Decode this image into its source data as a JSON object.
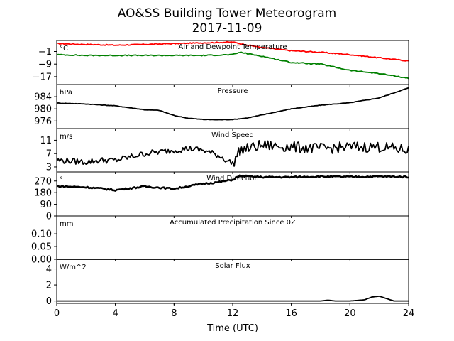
{
  "figure": {
    "title_line1": "AO&SS Building Tower Meteorogram",
    "title_line2": "2017-11-09",
    "xlabel": "Time (UTC)",
    "x_ticks": [
      0,
      4,
      8,
      12,
      16,
      20,
      24
    ],
    "xlim": [
      0,
      24
    ]
  },
  "chart_data": [
    {
      "type": "line",
      "title": "Air and Dewpoint Temperature",
      "unit": "°C",
      "ylim": [
        -22,
        6
      ],
      "y_ticks": [
        -1,
        -9,
        -17
      ],
      "y_tick_labels": [
        "−1",
        "−9",
        "−17"
      ],
      "x": [
        0,
        2,
        4,
        6,
        8,
        10,
        12,
        12.5,
        14,
        16,
        18,
        20,
        22,
        24
      ],
      "series": [
        {
          "name": "Air Temperature",
          "color": "#ff0000",
          "values": [
            4,
            3.5,
            3,
            3.5,
            4,
            4.5,
            5,
            4,
            1.5,
            -0.5,
            -1.5,
            -3,
            -5,
            -7
          ]
        },
        {
          "name": "Dewpoint Temperature",
          "color": "#008000",
          "values": [
            -3,
            -3.5,
            -3.5,
            -3.5,
            -3.5,
            -3.5,
            -3,
            -1.5,
            -4,
            -8,
            -9,
            -13,
            -15,
            -18
          ]
        }
      ]
    },
    {
      "type": "line",
      "title": "Pressure",
      "unit": "hPa",
      "ylim": [
        973.5,
        988
      ],
      "y_ticks": [
        984,
        980,
        976
      ],
      "y_tick_labels": [
        "984",
        "980",
        "976"
      ],
      "x": [
        0,
        2,
        4,
        6,
        7,
        8,
        9,
        10,
        11,
        12,
        13,
        14,
        16,
        18,
        20,
        22,
        24
      ],
      "series": [
        {
          "name": "Pressure",
          "color": "#000000",
          "values": [
            981.9,
            981.6,
            981,
            979.7,
            979.5,
            977.8,
            976.9,
            976.5,
            976.4,
            976.5,
            977,
            978,
            980,
            981.2,
            982,
            983.6,
            986.9
          ]
        }
      ]
    },
    {
      "type": "line",
      "title": "Wind Speed",
      "unit": "m/s",
      "ylim": [
        1.5,
        14.5
      ],
      "y_ticks": [
        11,
        7,
        3
      ],
      "y_tick_labels": [
        "11",
        "7",
        "3"
      ],
      "x": [
        0,
        2,
        3,
        4,
        5,
        6,
        7,
        8,
        9,
        10,
        11,
        12,
        12.5,
        14,
        16,
        18,
        20,
        22,
        24
      ],
      "series": [
        {
          "name": "Wind Speed",
          "color": "#000000",
          "values": [
            5,
            4.5,
            5,
            5,
            6,
            7,
            7.5,
            8,
            8.5,
            8,
            6.5,
            4,
            8,
            9.5,
            9,
            8.5,
            9,
            9,
            8
          ]
        }
      ]
    },
    {
      "type": "line",
      "title": "Wind Direction",
      "unit": "°",
      "ylim": [
        0,
        340
      ],
      "y_ticks": [
        270,
        180,
        90,
        0
      ],
      "y_tick_labels": [
        "270",
        "180",
        "90",
        "0"
      ],
      "x": [
        0,
        2,
        3,
        4,
        6,
        8,
        10,
        11,
        12,
        12.5,
        14,
        16,
        18,
        20,
        22,
        24
      ],
      "series": [
        {
          "name": "Wind Direction",
          "color": "#000000",
          "values": [
            230,
            222,
            212,
            200,
            228,
            210,
            250,
            260,
            280,
            310,
            300,
            300,
            305,
            302,
            305,
            302
          ]
        }
      ]
    },
    {
      "type": "line",
      "title": "Accumulated Precipitation Since 0Z",
      "unit": "mm",
      "ylim": [
        0,
        0.17
      ],
      "y_ticks": [
        0.1,
        0.05,
        0.0
      ],
      "y_tick_labels": [
        "0.10",
        "0.05",
        "0.00"
      ],
      "x": [
        0,
        24
      ],
      "series": [
        {
          "name": "Accumulated Precipitation",
          "color": "#000000",
          "values": [
            0,
            0
          ]
        }
      ]
    },
    {
      "type": "line",
      "title": "Solar Flux",
      "unit": "W/m^2",
      "ylim": [
        -0.3,
        5.2
      ],
      "y_ticks": [
        4,
        2,
        0
      ],
      "y_tick_labels": [
        "4",
        "2",
        "0"
      ],
      "x": [
        0,
        18,
        18.5,
        19,
        20,
        21,
        21.5,
        22,
        22.5,
        23,
        24
      ],
      "series": [
        {
          "name": "Solar Flux",
          "color": "#000000",
          "values": [
            0,
            0,
            0.1,
            0,
            0,
            0.15,
            0.5,
            0.6,
            0.3,
            0,
            0
          ]
        }
      ]
    }
  ]
}
